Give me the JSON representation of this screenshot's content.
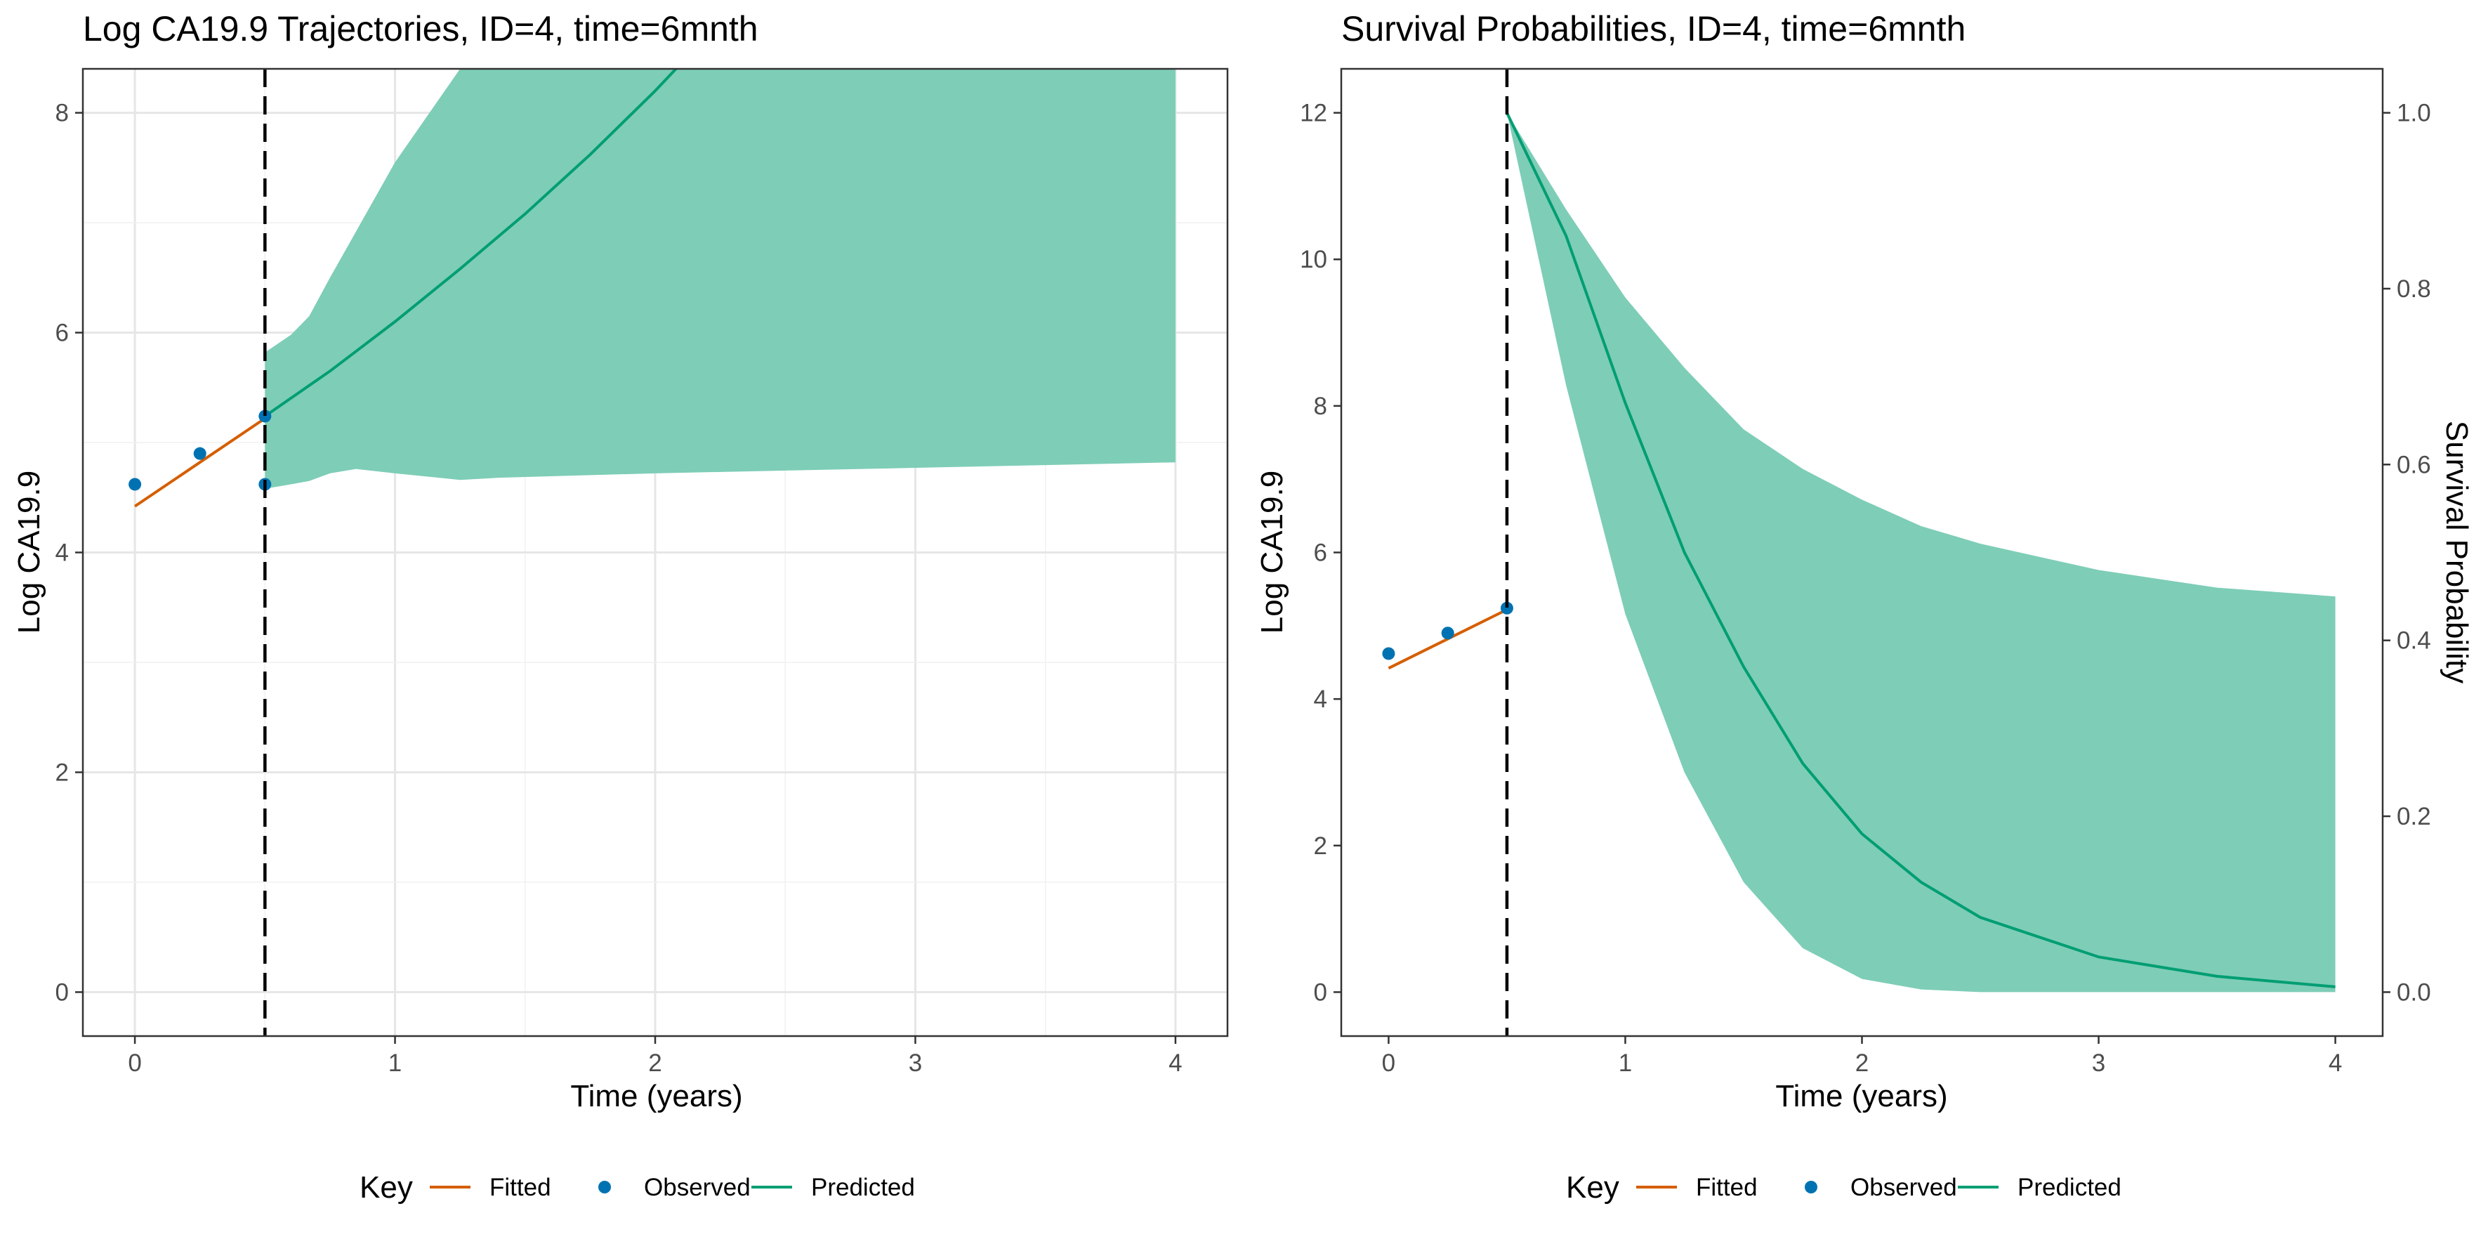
{
  "chart_data": [
    {
      "type": "line",
      "title": "Log CA19.9 Trajectories, ID=4, time=6mnth",
      "xlabel": "Time (years)",
      "ylabel": "Log CA19.9",
      "xlim": [
        -0.2,
        4.2
      ],
      "ylim": [
        -0.4,
        8.4
      ],
      "xticks": [
        0,
        1,
        2,
        3,
        4
      ],
      "yticks": [
        0,
        2,
        4,
        6,
        8
      ],
      "grid": true,
      "cutoff_time": 0.5,
      "series": [
        {
          "name": "Observed",
          "kind": "points",
          "color": "#0072B2",
          "x": [
            0,
            0.25,
            0.5,
            0.5
          ],
          "y": [
            4.62,
            4.9,
            5.24,
            4.62
          ]
        },
        {
          "name": "Fitted",
          "kind": "line",
          "color": "#D55E00",
          "x": [
            0,
            0.5
          ],
          "y": [
            4.42,
            5.22
          ]
        },
        {
          "name": "Predicted",
          "kind": "line",
          "color": "#009E73",
          "x": [
            0.5,
            0.75,
            1.0,
            1.25,
            1.5,
            1.75,
            2.0,
            2.1
          ],
          "y": [
            5.24,
            5.65,
            6.1,
            6.58,
            7.08,
            7.62,
            8.2,
            8.45
          ]
        },
        {
          "name": "Predicted interval",
          "kind": "band",
          "color": "#7ECDB7",
          "x": [
            0.5,
            0.6,
            0.67,
            0.75,
            0.85,
            1.0,
            1.25,
            1.4,
            2.0,
            3.0,
            4.0
          ],
          "lower": [
            4.58,
            4.62,
            4.65,
            4.72,
            4.76,
            4.72,
            4.66,
            4.68,
            4.72,
            4.77,
            4.82
          ],
          "upper": [
            5.82,
            5.98,
            6.15,
            6.5,
            6.92,
            7.55,
            8.45,
            8.45,
            8.45,
            8.45,
            8.45
          ]
        }
      ]
    },
    {
      "type": "line",
      "title": "Survival Probabilities, ID=4, time=6mnth",
      "xlabel": "Time (years)",
      "ylabel": "Log CA19.9",
      "y2label": "Survival Probability",
      "xlim": [
        -0.2,
        4.2
      ],
      "ylim": [
        -0.6,
        12.6
      ],
      "y2lim": [
        -0.05,
        1.05
      ],
      "xticks": [
        0,
        1,
        2,
        3,
        4
      ],
      "yticks": [
        0,
        2,
        4,
        6,
        8,
        10,
        12
      ],
      "y2ticks": [
        0.0,
        0.2,
        0.4,
        0.6,
        0.8,
        1.0
      ],
      "grid": false,
      "cutoff_time": 0.5,
      "series": [
        {
          "name": "Observed",
          "kind": "points",
          "color": "#0072B2",
          "x": [
            0,
            0.25,
            0.5
          ],
          "y": [
            4.62,
            4.9,
            5.24
          ]
        },
        {
          "name": "Fitted",
          "kind": "line",
          "color": "#D55E00",
          "x": [
            0,
            0.5
          ],
          "y": [
            4.42,
            5.22
          ]
        },
        {
          "name": "Predicted",
          "kind": "line",
          "axis": "y2",
          "color": "#009E73",
          "x": [
            0.5,
            0.75,
            1.0,
            1.25,
            1.5,
            1.75,
            2.0,
            2.25,
            2.5,
            3.0,
            3.5,
            4.0
          ],
          "y": [
            1.0,
            0.86,
            0.67,
            0.5,
            0.37,
            0.26,
            0.18,
            0.125,
            0.085,
            0.04,
            0.018,
            0.006
          ]
        },
        {
          "name": "Predicted interval",
          "kind": "band",
          "axis": "y2",
          "color": "#7ECDB7",
          "x": [
            0.5,
            0.75,
            1.0,
            1.25,
            1.5,
            1.75,
            2.0,
            2.25,
            2.5,
            3.0,
            3.5,
            4.0
          ],
          "lower": [
            1.0,
            0.69,
            0.43,
            0.25,
            0.125,
            0.05,
            0.015,
            0.003,
            0.0,
            0.0,
            0.0,
            0.0
          ],
          "upper": [
            1.0,
            0.89,
            0.79,
            0.71,
            0.64,
            0.595,
            0.56,
            0.53,
            0.51,
            0.48,
            0.46,
            0.45
          ]
        }
      ]
    }
  ],
  "legend": {
    "title": "Key",
    "entries": [
      {
        "label": "Fitted",
        "kind": "line",
        "color": "#D55E00"
      },
      {
        "label": "Observed",
        "kind": "point",
        "color": "#0072B2"
      },
      {
        "label": "Predicted",
        "kind": "line",
        "color": "#009E73"
      }
    ]
  }
}
